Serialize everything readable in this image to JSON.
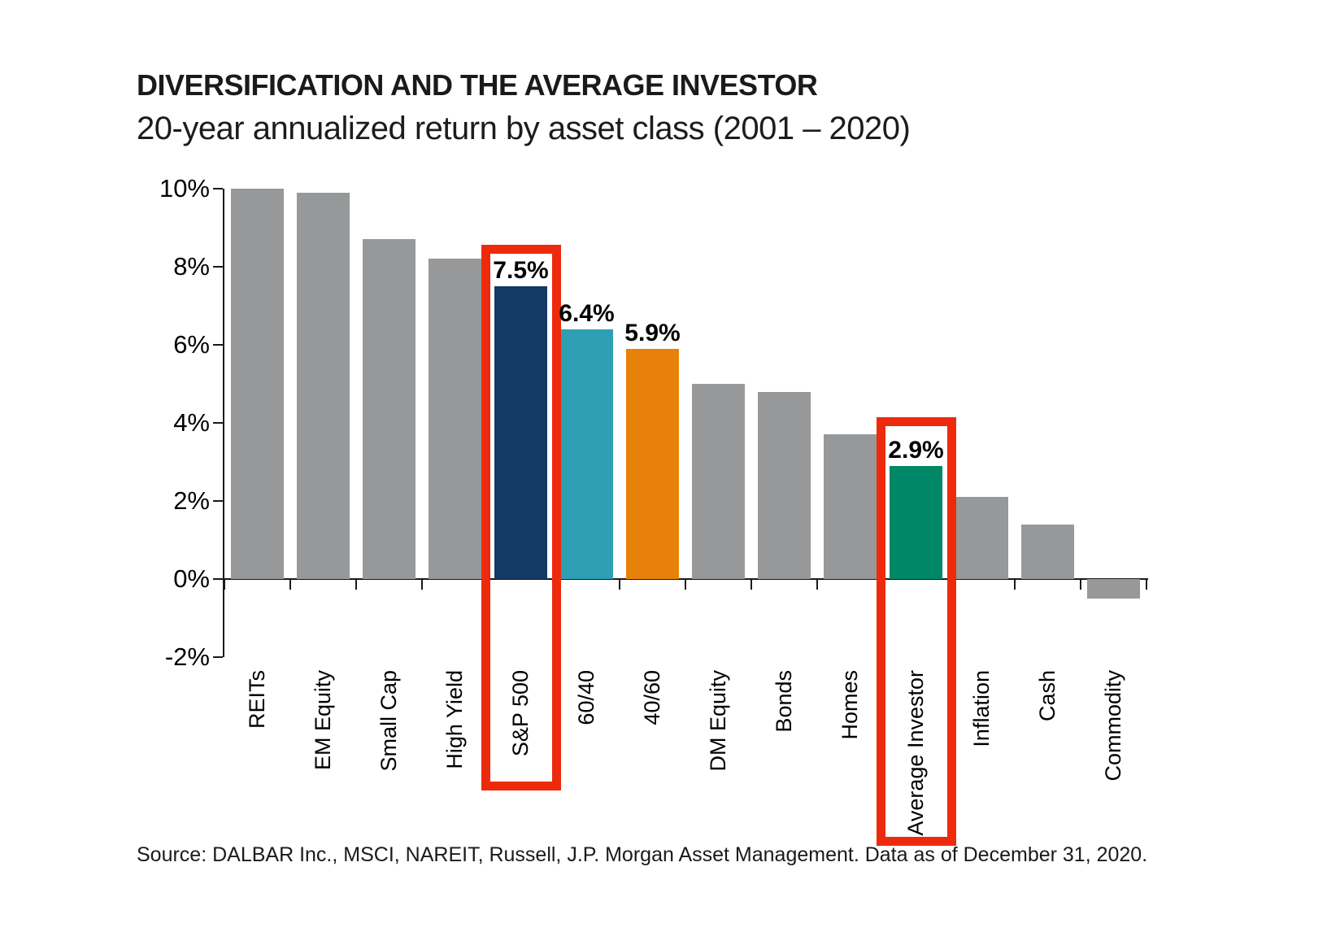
{
  "header": {
    "title": "DIVERSIFICATION AND THE AVERAGE INVESTOR",
    "subtitle": "20-year annualized return by asset class (2001 – 2020)"
  },
  "chart_data": {
    "type": "bar",
    "title": "DIVERSIFICATION AND THE AVERAGE INVESTOR",
    "subtitle": "20-year annualized return by asset class (2001 – 2020)",
    "ylim": [
      -2,
      10
    ],
    "grid": false,
    "legend": "none",
    "y_ticks": [
      {
        "value": 10,
        "label": "10%"
      },
      {
        "value": 8,
        "label": "8%"
      },
      {
        "value": 6,
        "label": "6%"
      },
      {
        "value": 4,
        "label": "4%"
      },
      {
        "value": 2,
        "label": "2%"
      },
      {
        "value": 0,
        "label": "0%"
      },
      {
        "value": -2,
        "label": "-2%"
      }
    ],
    "bars": [
      {
        "category": "REITs",
        "value": 10.0
      },
      {
        "category": "EM Equity",
        "value": 9.9
      },
      {
        "category": "Small Cap",
        "value": 8.7
      },
      {
        "category": "High Yield",
        "value": 8.2
      },
      {
        "category": "S&P 500",
        "value": 7.5,
        "value_label": "7.5%",
        "color": "#143A64",
        "highlighted": true
      },
      {
        "category": "60/40",
        "value": 6.4,
        "value_label": "6.4%",
        "color": "#2E9FB5"
      },
      {
        "category": "40/60",
        "value": 5.9,
        "value_label": "5.9%",
        "color": "#E8810A"
      },
      {
        "category": "DM Equity",
        "value": 5.0
      },
      {
        "category": "Bonds",
        "value": 4.8
      },
      {
        "category": "Homes",
        "value": 3.7
      },
      {
        "category": "Average Investor",
        "value": 2.9,
        "value_label": "2.9%",
        "color": "#008767",
        "highlighted": true
      },
      {
        "category": "Inflation",
        "value": 2.1
      },
      {
        "category": "Cash",
        "value": 1.4
      },
      {
        "category": "Commodity",
        "value": -0.5
      }
    ],
    "colors": {
      "default_bar": "#97989A",
      "highlight_box": "#EE2A0C",
      "axis": "#1A1A1A",
      "text": "#000000"
    }
  },
  "footer": {
    "source": "Source: DALBAR Inc., MSCI, NAREIT, Russell, J.P. Morgan Asset Management. Data as of December 31, 2020."
  }
}
